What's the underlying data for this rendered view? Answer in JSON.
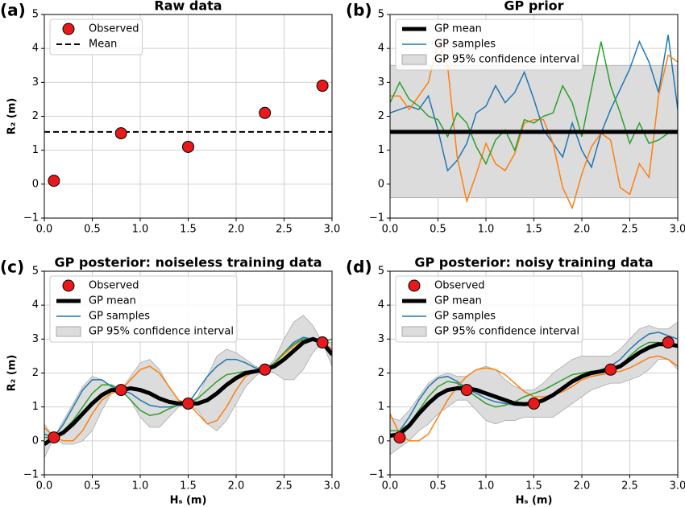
{
  "chart_data": [
    {
      "type": "line",
      "panel_label": "(a)",
      "title": "Raw data",
      "ylabel": "R₂ (m)",
      "x": [
        0,
        0.1,
        0.2,
        0.3,
        0.4,
        0.5,
        0.6,
        0.7,
        0.8,
        0.9,
        1.0,
        1.1,
        1.2,
        1.3,
        1.4,
        1.5,
        1.6,
        1.7,
        1.8,
        1.9,
        2.0,
        2.1,
        2.2,
        2.3,
        2.4,
        2.5,
        2.6,
        2.7,
        2.8,
        2.9,
        3.0
      ],
      "xlim": [
        0,
        3
      ],
      "ylim": [
        -1,
        5
      ],
      "xticks": [
        {
          "value": 0,
          "label": "0.0"
        },
        0.5,
        {
          "value": 1,
          "label": "1.0"
        },
        1.5,
        {
          "value": 2,
          "label": "2.0"
        },
        2.5,
        {
          "value": 3,
          "label": "3.0"
        }
      ],
      "yticks": [
        {
          "value": -1,
          "label": "−1"
        },
        0,
        1,
        2,
        3,
        4,
        5
      ],
      "grid": true,
      "legend": "upper left",
      "series": [
        {
          "name": "Observed",
          "style": "scatter",
          "color": "#e8191a",
          "x": [
            0.1,
            0.8,
            1.5,
            2.3,
            2.9
          ],
          "values": [
            0.1,
            1.5,
            1.1,
            2.1,
            2.9
          ]
        },
        {
          "name": "Mean",
          "style": "dashed",
          "color": "#000000",
          "value": 1.54
        }
      ]
    },
    {
      "type": "line",
      "panel_label": "(b)",
      "title": "GP prior",
      "x": [
        0,
        0.1,
        0.2,
        0.3,
        0.4,
        0.5,
        0.6,
        0.7,
        0.8,
        0.9,
        1.0,
        1.1,
        1.2,
        1.3,
        1.4,
        1.5,
        1.6,
        1.7,
        1.8,
        1.9,
        2.0,
        2.1,
        2.2,
        2.3,
        2.4,
        2.5,
        2.6,
        2.7,
        2.8,
        2.9,
        3.0
      ],
      "xlim": [
        0,
        3
      ],
      "ylim": [
        -1,
        5
      ],
      "xticks": [
        {
          "value": 0,
          "label": "0.0"
        },
        0.5,
        {
          "value": 1,
          "label": "1.0"
        },
        1.5,
        {
          "value": 2,
          "label": "2.0"
        },
        2.5,
        {
          "value": 3,
          "label": "3.0"
        }
      ],
      "yticks": [
        {
          "value": -1,
          "label": "−1"
        },
        0,
        1,
        2,
        3,
        4,
        5
      ],
      "grid": true,
      "legend": "upper left",
      "series": [
        {
          "name": "GP mean",
          "style": "thick",
          "color": "#000000",
          "value": 1.54
        },
        {
          "name": "GP samples",
          "style": "samples",
          "colors": [
            "#1f77b4",
            "#ff7f0e",
            "#2ca02c"
          ],
          "samples": [
            [
              2.1,
              2.2,
              2.3,
              2.2,
              2.6,
              1.6,
              0.4,
              0.7,
              1.2,
              2.1,
              2.3,
              2.9,
              2.4,
              2.7,
              3.3,
              2.5,
              1.6,
              1.2,
              0.8,
              1.8,
              1.0,
              0.5,
              1.5,
              2.2,
              2.8,
              3.4,
              4.2,
              3.6,
              2.7,
              4.4,
              2.2
            ],
            [
              2.6,
              2.6,
              2.2,
              2.6,
              3.0,
              4.2,
              3.5,
              0.8,
              -0.5,
              0.3,
              1.2,
              0.6,
              0.4,
              0.9,
              1.8,
              1.9,
              1.9,
              1.2,
              -0.1,
              -0.7,
              0.3,
              1.1,
              1.5,
              1.3,
              -0.1,
              -0.3,
              0.6,
              0.2,
              2.6,
              3.8,
              3.6
            ],
            [
              2.4,
              3.0,
              2.5,
              2.3,
              2.0,
              1.9,
              1.4,
              2.1,
              1.8,
              1.1,
              0.6,
              1.3,
              1.6,
              1.0,
              1.9,
              1.8,
              2.0,
              2.1,
              2.9,
              2.4,
              1.4,
              2.8,
              4.2,
              2.9,
              2.1,
              1.2,
              1.8,
              1.2,
              1.3,
              1.5,
              1.6
            ]
          ]
        },
        {
          "name": "GP 95% confidence interval",
          "style": "band",
          "color": "#dcdcdc",
          "lower": -0.4,
          "upper": 3.5
        }
      ]
    },
    {
      "type": "line",
      "panel_label": "(c)",
      "title": "GP posterior: noiseless training data",
      "ylabel": "R₂ (m)",
      "xlabel": "Hₛ (m)",
      "x": [
        0,
        0.1,
        0.2,
        0.3,
        0.4,
        0.5,
        0.6,
        0.7,
        0.8,
        0.9,
        1.0,
        1.1,
        1.2,
        1.3,
        1.4,
        1.5,
        1.6,
        1.7,
        1.8,
        1.9,
        2.0,
        2.1,
        2.2,
        2.3,
        2.4,
        2.5,
        2.6,
        2.7,
        2.8,
        2.9,
        3.0
      ],
      "xlim": [
        0,
        3
      ],
      "ylim": [
        -1,
        5
      ],
      "xticks": [
        {
          "value": 0,
          "label": "0.0"
        },
        0.5,
        {
          "value": 1,
          "label": "1.0"
        },
        1.5,
        {
          "value": 2,
          "label": "2.0"
        },
        2.5,
        {
          "value": 3,
          "label": "3.0"
        }
      ],
      "yticks": [
        {
          "value": -1,
          "label": "−1"
        },
        0,
        1,
        2,
        3,
        4,
        5
      ],
      "grid": true,
      "legend": "upper left",
      "series": [
        {
          "name": "Observed",
          "style": "scatter",
          "color": "#e8191a",
          "x": [
            0.1,
            0.8,
            1.5,
            2.3,
            2.9
          ],
          "values": [
            0.1,
            1.5,
            1.1,
            2.1,
            2.9
          ]
        },
        {
          "name": "GP mean",
          "style": "thick",
          "color": "#000000",
          "values": [
            -0.1,
            0.1,
            0.25,
            0.5,
            0.8,
            1.1,
            1.35,
            1.5,
            1.5,
            1.55,
            1.5,
            1.4,
            1.25,
            1.15,
            1.1,
            1.1,
            1.1,
            1.2,
            1.4,
            1.65,
            1.85,
            2.0,
            2.05,
            2.1,
            2.2,
            2.4,
            2.65,
            2.9,
            3.0,
            2.9,
            2.55
          ]
        },
        {
          "name": "GP samples",
          "style": "samples",
          "colors": [
            "#1f77b4",
            "#ff7f0e",
            "#2ca02c"
          ],
          "samples": [
            [
              0.2,
              0.1,
              0.5,
              1.0,
              1.5,
              1.8,
              1.8,
              1.6,
              1.5,
              1.4,
              1.2,
              1.05,
              1.0,
              1.0,
              1.05,
              1.1,
              1.5,
              1.9,
              2.2,
              2.4,
              2.4,
              2.3,
              2.15,
              2.1,
              2.3,
              2.6,
              2.9,
              3.05,
              3.0,
              2.9,
              2.5
            ],
            [
              0.4,
              0.1,
              0.0,
              0.0,
              0.3,
              0.8,
              1.2,
              1.4,
              1.5,
              1.8,
              2.1,
              2.2,
              2.0,
              1.6,
              1.2,
              1.1,
              0.8,
              0.5,
              0.6,
              1.0,
              1.5,
              1.9,
              2.05,
              2.1,
              2.3,
              2.55,
              2.8,
              3.0,
              3.0,
              2.9,
              2.7
            ],
            [
              0.1,
              0.1,
              0.3,
              0.6,
              1.0,
              1.4,
              1.65,
              1.65,
              1.5,
              1.2,
              0.9,
              0.75,
              0.8,
              0.95,
              1.05,
              1.1,
              1.25,
              1.5,
              1.75,
              1.95,
              2.0,
              2.05,
              2.05,
              2.1,
              2.3,
              2.6,
              2.85,
              3.0,
              3.0,
              2.9,
              3.0
            ]
          ]
        },
        {
          "name": "GP 95% confidence interval",
          "style": "band",
          "color": "#dcdcdc",
          "lower": [
            -0.5,
            0.1,
            -0.1,
            -0.1,
            0.0,
            0.3,
            0.9,
            1.4,
            1.5,
            1.2,
            0.7,
            0.4,
            0.4,
            0.7,
            1.0,
            1.1,
            0.9,
            0.5,
            0.3,
            0.6,
            1.1,
            1.6,
            1.9,
            2.1,
            2.0,
            1.8,
            1.8,
            2.1,
            2.6,
            2.9,
            2.2
          ],
          "upper": [
            0.5,
            0.1,
            0.6,
            1.1,
            1.6,
            1.9,
            1.8,
            1.6,
            1.5,
            1.9,
            2.3,
            2.4,
            2.1,
            1.6,
            1.2,
            1.1,
            1.3,
            1.9,
            2.5,
            2.7,
            2.6,
            2.4,
            2.2,
            2.1,
            2.4,
            3.0,
            3.5,
            3.7,
            3.4,
            2.9,
            2.9
          ]
        }
      ]
    },
    {
      "type": "line",
      "panel_label": "(d)",
      "title": "GP posterior: noisy training data",
      "xlabel": "Hₛ (m)",
      "x": [
        0,
        0.1,
        0.2,
        0.3,
        0.4,
        0.5,
        0.6,
        0.7,
        0.8,
        0.9,
        1.0,
        1.1,
        1.2,
        1.3,
        1.4,
        1.5,
        1.6,
        1.7,
        1.8,
        1.9,
        2.0,
        2.1,
        2.2,
        2.3,
        2.4,
        2.5,
        2.6,
        2.7,
        2.8,
        2.9,
        3.0
      ],
      "xlim": [
        0,
        3
      ],
      "ylim": [
        -1,
        5
      ],
      "xticks": [
        {
          "value": 0,
          "label": "0.0"
        },
        0.5,
        {
          "value": 1,
          "label": "1.0"
        },
        1.5,
        {
          "value": 2,
          "label": "2.0"
        },
        2.5,
        {
          "value": 3,
          "label": "3.0"
        }
      ],
      "yticks": [
        {
          "value": -1,
          "label": "−1"
        },
        0,
        1,
        2,
        3,
        4,
        5
      ],
      "grid": true,
      "legend": "upper left",
      "series": [
        {
          "name": "Observed",
          "style": "scatter",
          "color": "#e8191a",
          "x": [
            0.1,
            0.8,
            1.5,
            2.3,
            2.9
          ],
          "values": [
            0.1,
            1.5,
            1.1,
            2.1,
            2.9
          ]
        },
        {
          "name": "GP mean",
          "style": "thick",
          "color": "#000000",
          "values": [
            0.15,
            0.2,
            0.45,
            0.8,
            1.1,
            1.35,
            1.5,
            1.55,
            1.55,
            1.5,
            1.4,
            1.3,
            1.2,
            1.1,
            1.08,
            1.1,
            1.2,
            1.35,
            1.55,
            1.75,
            1.9,
            2.0,
            2.05,
            2.1,
            2.2,
            2.4,
            2.6,
            2.75,
            2.85,
            2.85,
            2.8
          ]
        },
        {
          "name": "GP samples",
          "style": "samples",
          "colors": [
            "#1f77b4",
            "#ff7f0e",
            "#2ca02c"
          ],
          "samples": [
            [
              0.1,
              0.3,
              0.7,
              1.2,
              1.6,
              1.85,
              1.9,
              1.75,
              1.55,
              1.4,
              1.25,
              1.15,
              1.1,
              1.05,
              1.05,
              1.1,
              1.2,
              1.35,
              1.5,
              1.7,
              1.85,
              2.0,
              2.1,
              2.2,
              2.4,
              2.7,
              2.95,
              3.15,
              3.2,
              3.1,
              3.0
            ],
            [
              0.8,
              0.2,
              0.0,
              0.0,
              0.2,
              0.7,
              1.2,
              1.6,
              1.9,
              2.1,
              2.15,
              2.1,
              1.95,
              1.7,
              1.45,
              1.3,
              1.3,
              1.35,
              1.45,
              1.6,
              1.8,
              1.9,
              1.95,
              2.0,
              2.05,
              2.15,
              2.3,
              2.45,
              2.5,
              2.4,
              2.2
            ],
            [
              0.3,
              0.3,
              0.5,
              0.9,
              1.3,
              1.6,
              1.75,
              1.7,
              1.5,
              1.3,
              1.1,
              1.0,
              1.05,
              1.15,
              1.3,
              1.4,
              1.5,
              1.65,
              1.8,
              1.95,
              2.0,
              2.05,
              2.05,
              2.05,
              2.2,
              2.5,
              2.75,
              2.9,
              2.9,
              2.8,
              2.85
            ]
          ]
        },
        {
          "name": "GP 95% confidence interval",
          "style": "band",
          "color": "#dcdcdc",
          "lower": [
            -0.4,
            -0.2,
            0.0,
            0.3,
            0.5,
            0.8,
            1.0,
            1.2,
            1.2,
            0.9,
            0.6,
            0.5,
            0.6,
            0.6,
            0.7,
            0.7,
            0.7,
            0.7,
            0.9,
            1.1,
            1.3,
            1.5,
            1.6,
            1.7,
            1.7,
            1.8,
            1.9,
            2.1,
            2.4,
            2.4,
            2.1
          ],
          "upper": [
            0.7,
            0.6,
            0.9,
            1.3,
            1.7,
            1.9,
            2.0,
            1.9,
            1.9,
            2.1,
            2.2,
            2.1,
            1.8,
            1.6,
            1.5,
            1.5,
            1.7,
            2.0,
            2.2,
            2.4,
            2.5,
            2.5,
            2.5,
            2.5,
            2.7,
            3.0,
            3.3,
            3.4,
            3.3,
            3.3,
            3.5
          ]
        }
      ]
    }
  ]
}
